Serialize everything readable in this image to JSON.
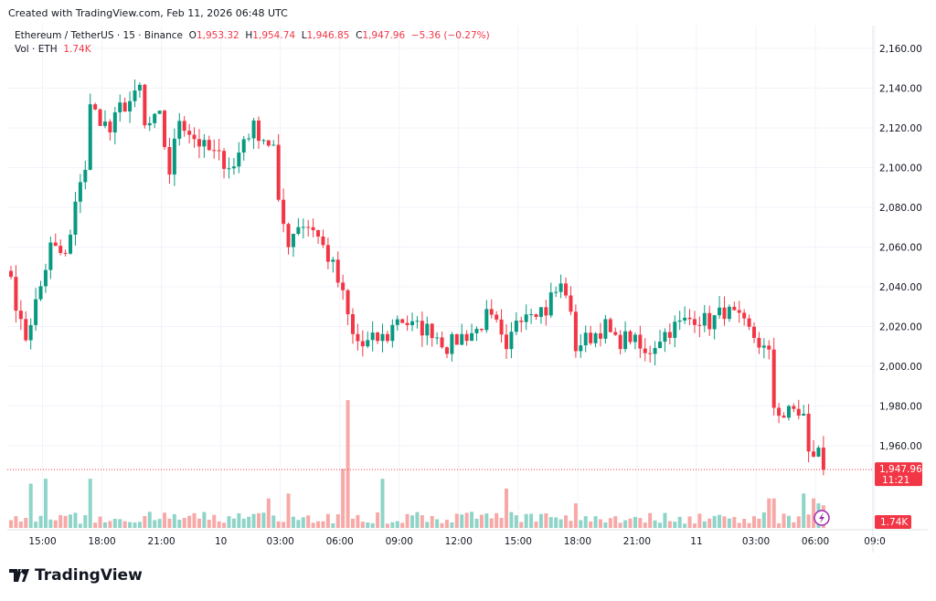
{
  "header": {
    "created": "Created with TradingView.com, Feb 11, 2026 06:48 UTC"
  },
  "legend": {
    "symbol": "Ethereum / TetherUS · 15 · Binance",
    "o_label": "O",
    "o": "1,953.32",
    "h_label": "H",
    "h": "1,954.74",
    "l_label": "L",
    "l": "1,946.85",
    "c_label": "C",
    "c": "1,947.96",
    "change": "−5.36 (−0.27%)",
    "vol_label": "Vol · ETH",
    "vol": "1.74K"
  },
  "price_tag": {
    "price": "1,947.96",
    "countdown": "11:21"
  },
  "vol_tag": "1.74K",
  "logo": "TradingView",
  "colors": {
    "up": "#089981",
    "down": "#f23645",
    "upVol": "#8fd4c8",
    "downVol": "#f7a9a7"
  },
  "chart_data": {
    "type": "candlestick",
    "title": "Ethereum / TetherUS · 15 · Binance",
    "ylim": [
      1940,
      2170
    ],
    "y_ticks": [
      "2,160.00",
      "2,140.00",
      "2,120.00",
      "2,100.00",
      "2,080.00",
      "2,060.00",
      "2,040.00",
      "2,020.00",
      "2,000.00",
      "1,980.00",
      "1,960.00"
    ],
    "y_tick_values": [
      2160,
      2140,
      2120,
      2100,
      2080,
      2060,
      2040,
      2020,
      2000,
      1980,
      1960
    ],
    "x_ticks": [
      {
        "label": "15:00",
        "candle": 6
      },
      {
        "label": "18:00",
        "candle": 18
      },
      {
        "label": "21:00",
        "candle": 30
      },
      {
        "label": "10",
        "candle": 42
      },
      {
        "label": "03:00",
        "candle": 54
      },
      {
        "label": "06:00",
        "candle": 66
      },
      {
        "label": "09:00",
        "candle": 78
      },
      {
        "label": "12:00",
        "candle": 90
      },
      {
        "label": "15:00",
        "candle": 102
      },
      {
        "label": "18:00",
        "candle": 114
      },
      {
        "label": "21:00",
        "candle": 126
      },
      {
        "label": "11",
        "candle": 138
      },
      {
        "label": "03:00",
        "candle": 150
      },
      {
        "label": "06:00",
        "candle": 162
      },
      {
        "label": "09:0",
        "candle": 174
      }
    ],
    "candle_count": 165,
    "price_path": [
      [
        0,
        2045
      ],
      [
        2,
        2020
      ],
      [
        3,
        2015
      ],
      [
        6,
        2040
      ],
      [
        8,
        2060
      ],
      [
        11,
        2055
      ],
      [
        12,
        2065
      ],
      [
        14,
        2095
      ],
      [
        15,
        2100
      ],
      [
        16,
        2130
      ],
      [
        18,
        2125
      ],
      [
        20,
        2118
      ],
      [
        22,
        2130
      ],
      [
        25,
        2135
      ],
      [
        26,
        2140
      ],
      [
        27,
        2120
      ],
      [
        30,
        2125
      ],
      [
        32,
        2098
      ],
      [
        34,
        2125
      ],
      [
        37,
        2115
      ],
      [
        39,
        2110
      ],
      [
        42,
        2105
      ],
      [
        45,
        2100
      ],
      [
        47,
        2115
      ],
      [
        49,
        2120
      ],
      [
        51,
        2115
      ],
      [
        53,
        2110
      ],
      [
        54,
        2080
      ],
      [
        56,
        2063
      ],
      [
        58,
        2072
      ],
      [
        61,
        2070
      ],
      [
        63,
        2060
      ],
      [
        65,
        2050
      ],
      [
        67,
        2035
      ],
      [
        69,
        2015
      ],
      [
        71,
        2010
      ],
      [
        73,
        2013
      ],
      [
        76,
        2015
      ],
      [
        78,
        2025
      ],
      [
        81,
        2020
      ],
      [
        85,
        2018
      ],
      [
        88,
        2010
      ],
      [
        91,
        2015
      ],
      [
        94,
        2018
      ],
      [
        96,
        2025
      ],
      [
        98,
        2020
      ],
      [
        100,
        2005
      ],
      [
        102,
        2025
      ],
      [
        105,
        2030
      ],
      [
        108,
        2028
      ],
      [
        109,
        2035
      ],
      [
        111,
        2040
      ],
      [
        112,
        2038
      ],
      [
        114,
        2010
      ],
      [
        117,
        2015
      ],
      [
        120,
        2020
      ],
      [
        122,
        2012
      ],
      [
        125,
        2015
      ],
      [
        128,
        2005
      ],
      [
        131,
        2015
      ],
      [
        134,
        2020
      ],
      [
        138,
        2025
      ],
      [
        141,
        2022
      ],
      [
        144,
        2028
      ],
      [
        146,
        2025
      ],
      [
        148,
        2020
      ],
      [
        150,
        2015
      ],
      [
        153,
        2005
      ],
      [
        154,
        1980
      ],
      [
        156,
        1975
      ],
      [
        158,
        1978
      ],
      [
        160,
        1975
      ],
      [
        161,
        1955
      ],
      [
        163,
        1957
      ],
      [
        164,
        1948
      ]
    ],
    "volume_max": 2.6,
    "volume_spikes": [
      [
        4,
        0.9
      ],
      [
        7,
        1.0
      ],
      [
        16,
        1.0
      ],
      [
        52,
        0.6
      ],
      [
        56,
        0.7
      ],
      [
        67,
        1.2
      ],
      [
        68,
        2.6
      ],
      [
        75,
        1.0
      ],
      [
        100,
        0.8
      ],
      [
        114,
        0.5
      ],
      [
        153,
        0.6
      ],
      [
        154,
        0.6
      ],
      [
        160,
        0.7
      ],
      [
        162,
        0.6
      ],
      [
        163,
        0.5
      ],
      [
        164,
        0.46
      ]
    ]
  }
}
